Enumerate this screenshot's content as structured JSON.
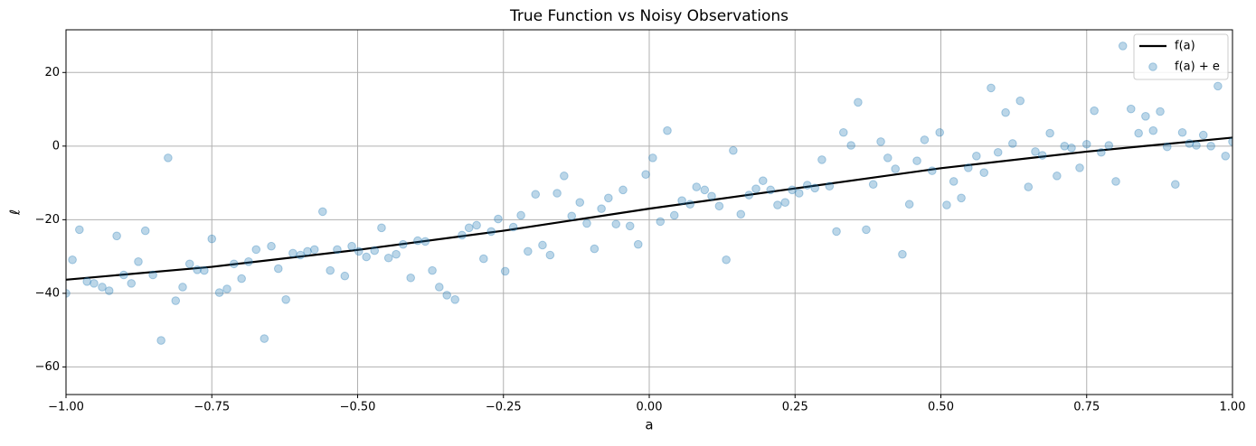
{
  "chart_data": {
    "type": "line",
    "title": "True Function vs Noisy Observations",
    "x_label": "a",
    "y_label": "ℓ",
    "xlim": [
      -1,
      1
    ],
    "ylim": [
      -67.5,
      31.6
    ],
    "xticks": [
      {
        "value": -1,
        "label": "−1.00"
      },
      {
        "value": -0.75,
        "label": "−0.75"
      },
      {
        "value": -0.5,
        "label": "−0.50"
      },
      {
        "value": -0.25,
        "label": "−0.25"
      },
      {
        "value": 0,
        "label": "0.00"
      },
      {
        "value": 0.25,
        "label": "0.25"
      },
      {
        "value": 0.5,
        "label": "0.50"
      },
      {
        "value": 0.75,
        "label": "0.75"
      },
      {
        "value": 1,
        "label": "1.00"
      }
    ],
    "yticks": [
      {
        "value": -60,
        "label": "−60"
      },
      {
        "value": -40,
        "label": "−40"
      },
      {
        "value": -20,
        "label": "−20"
      },
      0,
      20
    ],
    "grid": true,
    "legend": "upper right",
    "series": [
      {
        "name": "f(a)",
        "type": "line",
        "color": "#000000",
        "x": [
          -1,
          -0.75,
          -0.5,
          -0.25,
          0,
          0.25,
          0.5,
          0.75,
          1
        ],
        "values": [
          -36.3,
          -32.8,
          -28.2,
          -23,
          -17,
          -11.5,
          -6,
          -1.5,
          2.3
        ]
      },
      {
        "name": "f(a) + e",
        "type": "scatter",
        "color": "#1f77b4",
        "x": [
          -1.0,
          -0.989,
          -0.977,
          -0.964,
          -0.952,
          -0.938,
          -0.926,
          -0.913,
          -0.901,
          -0.888,
          -0.876,
          -0.864,
          -0.851,
          -0.837,
          -0.825,
          -0.812,
          -0.8,
          -0.788,
          -0.775,
          -0.763,
          -0.75,
          -0.737,
          -0.724,
          -0.712,
          -0.699,
          -0.687,
          -0.674,
          -0.66,
          -0.648,
          -0.636,
          -0.623,
          -0.611,
          -0.598,
          -0.586,
          -0.574,
          -0.56,
          -0.547,
          -0.535,
          -0.522,
          -0.51,
          -0.498,
          -0.485,
          -0.471,
          -0.459,
          -0.447,
          -0.434,
          -0.422,
          -0.409,
          -0.397,
          -0.384,
          -0.372,
          -0.36,
          -0.347,
          -0.333,
          -0.321,
          -0.309,
          -0.296,
          -0.284,
          -0.271,
          -0.259,
          -0.247,
          -0.233,
          -0.22,
          -0.208,
          -0.195,
          -0.183,
          -0.17,
          -0.158,
          -0.146,
          -0.133,
          -0.119,
          -0.107,
          -0.094,
          -0.082,
          -0.07,
          -0.057,
          -0.045,
          -0.033,
          -0.019,
          -0.006,
          0.006,
          0.019,
          0.031,
          0.043,
          0.056,
          0.07,
          0.081,
          0.095,
          0.107,
          0.12,
          0.132,
          0.144,
          0.157,
          0.171,
          0.183,
          0.195,
          0.208,
          0.22,
          0.233,
          0.245,
          0.257,
          0.271,
          0.284,
          0.296,
          0.309,
          0.321,
          0.333,
          0.346,
          0.358,
          0.372,
          0.384,
          0.397,
          0.409,
          0.422,
          0.434,
          0.446,
          0.459,
          0.472,
          0.485,
          0.498,
          0.51,
          0.522,
          0.535,
          0.547,
          0.561,
          0.574,
          0.586,
          0.598,
          0.611,
          0.623,
          0.636,
          0.65,
          0.662,
          0.674,
          0.687,
          0.699,
          0.712,
          0.724,
          0.738,
          0.75,
          0.763,
          0.775,
          0.788,
          0.8,
          0.812,
          0.826,
          0.839,
          0.851,
          0.864,
          0.876,
          0.888,
          0.902,
          0.914,
          0.926,
          0.938,
          0.95,
          0.963,
          0.975,
          0.988,
          1.0
        ],
        "values": [
          -40,
          -30.9,
          -22.7,
          -36.8,
          -37.3,
          -38.3,
          -39.3,
          -24.4,
          -35,
          -37.3,
          -31.4,
          -23,
          -35,
          -52.8,
          -3.2,
          -42,
          -38.3,
          -32,
          -33.6,
          -33.8,
          -25.2,
          -39.8,
          -38.8,
          -32,
          -36,
          -31.4,
          -28.1,
          -52.3,
          -27.2,
          -33.3,
          -41.7,
          -29.1,
          -29.6,
          -28.6,
          -28.1,
          -17.8,
          -33.8,
          -28.1,
          -35.3,
          -27.2,
          -28.6,
          -30.1,
          -28.4,
          -22.2,
          -30.4,
          -29.4,
          -26.7,
          -35.8,
          -25.7,
          -25.9,
          -33.8,
          -38.3,
          -40.5,
          -41.7,
          -24.2,
          -22.2,
          -21.5,
          -30.6,
          -23.2,
          -19.8,
          -34,
          -22,
          -18.8,
          -28.6,
          -13.1,
          -26.9,
          -29.6,
          -12.8,
          -8.1,
          -19,
          -15.3,
          -21,
          -27.9,
          -17,
          -14.1,
          -21.2,
          -11.9,
          -21.7,
          -26.7,
          -7.7,
          -3.2,
          -20.5,
          4.2,
          -18.8,
          -14.8,
          -15.8,
          -11.1,
          -11.9,
          -13.6,
          -16.3,
          -30.9,
          -1.2,
          -18.5,
          -13.3,
          -11.6,
          -9.4,
          -11.9,
          -16,
          -15.3,
          -11.9,
          -12.8,
          -10.6,
          -11.4,
          -3.7,
          -10.9,
          -23.2,
          3.7,
          0.2,
          11.9,
          -22.7,
          -10.4,
          1.2,
          -3.2,
          -6.2,
          -29.4,
          -15.8,
          -4,
          1.7,
          -6.7,
          3.7,
          -16,
          -9.6,
          -14.1,
          -5.9,
          -2.7,
          -7.2,
          15.8,
          -1.7,
          9.1,
          0.7,
          12.3,
          -11.1,
          -1.5,
          -2.5,
          3.5,
          -8.1,
          0,
          -0.5,
          -5.9,
          0.5,
          9.6,
          -1.7,
          0.2,
          -9.6,
          27.2,
          10.1,
          3.5,
          8.1,
          4.2,
          9.4,
          -0.2,
          -10.4,
          3.7,
          0.7,
          0.2,
          3,
          0,
          16.3,
          -2.7,
          1.2
        ]
      }
    ]
  }
}
